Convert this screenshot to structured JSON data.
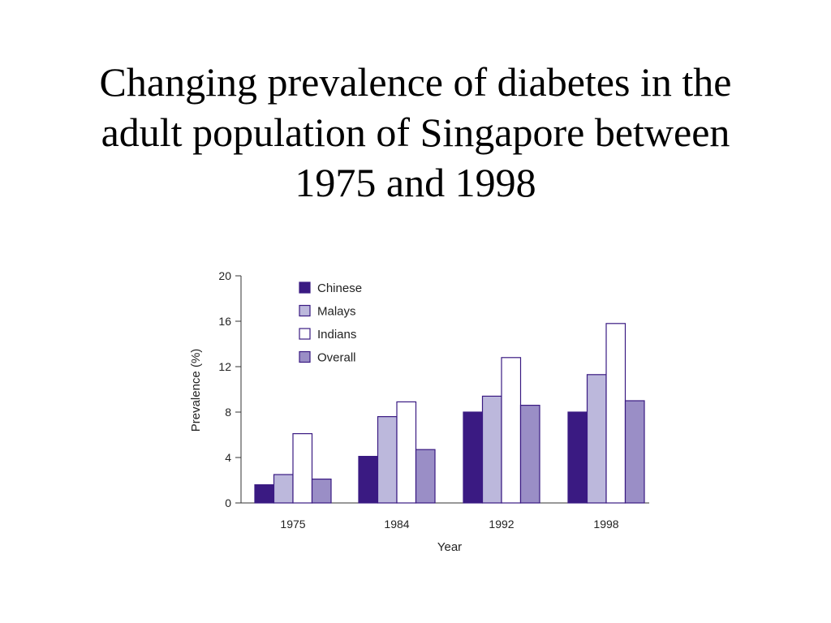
{
  "slide": {
    "title_lines": [
      "Changing prevalence of diabetes in the",
      "adult population of Singapore between",
      "1975 and 1998"
    ]
  },
  "chart_data": {
    "type": "bar",
    "categories": [
      "1975",
      "1984",
      "1992",
      "1998"
    ],
    "series": [
      {
        "name": "Chinese",
        "color": "#3a1a82",
        "values": [
          1.6,
          4.1,
          8.0,
          8.0
        ]
      },
      {
        "name": "Malays",
        "color": "#bcb8dc",
        "values": [
          2.5,
          7.6,
          9.4,
          11.3
        ]
      },
      {
        "name": "Indians",
        "color": "#ffffff",
        "values": [
          6.1,
          8.9,
          12.8,
          15.8
        ]
      },
      {
        "name": "Overall",
        "color": "#9a8ec6",
        "values": [
          2.1,
          4.7,
          8.6,
          9.0
        ]
      }
    ],
    "xlabel": "Year",
    "ylabel": "Prevalence (%)",
    "ylim": [
      0,
      20
    ],
    "yticks": [
      0,
      4,
      8,
      12,
      16,
      20
    ],
    "legend_position": "top-left",
    "bar_outline_color": "#3a1a82",
    "grid": false
  }
}
